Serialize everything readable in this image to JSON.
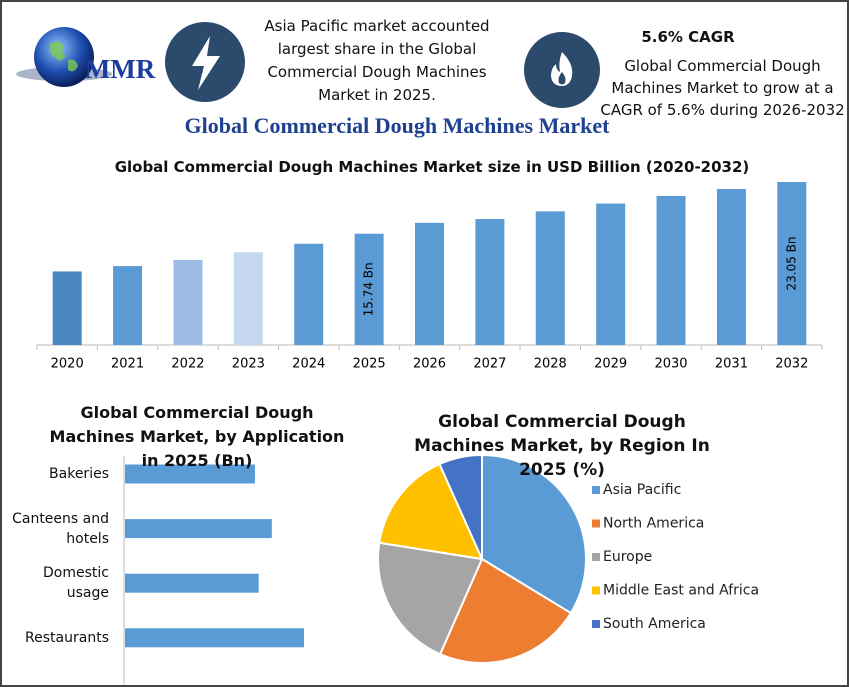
{
  "header": {
    "logo": "MMR",
    "highlight_1": "Asia Pacific market accounted largest share in the Global Commercial Dough Machines Market in 2025.",
    "highlight_2_title": "5.6% CAGR",
    "highlight_2": "Global Commercial Dough Machines Market to grow at a CAGR of 5.6% during 2026-2032",
    "title": "Global Commercial Dough Machines Market"
  },
  "chart_data": [
    {
      "type": "bar",
      "title": "Global Commercial Dough Machines Market size in USD Billion (2020-2032)",
      "categories": [
        "2020",
        "2021",
        "2022",
        "2023",
        "2024",
        "2025",
        "2026",
        "2027",
        "2028",
        "2029",
        "2030",
        "2031",
        "2032"
      ],
      "values": [
        10.4,
        11.16,
        12.03,
        13.12,
        14.32,
        15.74,
        17.27,
        17.81,
        18.9,
        20.0,
        21.08,
        22.06,
        23.05
      ],
      "value_labels": [
        null,
        null,
        null,
        null,
        null,
        "15.74 Bn",
        null,
        null,
        null,
        null,
        null,
        null,
        "23.05 Bn"
      ],
      "colors": [
        "#4a86c0",
        "#5b9bd5",
        "#9dbde6",
        "#c5d7ee",
        "#5b9bd5",
        "#5b9bd5",
        "#5b9bd5",
        "#5b9bd5",
        "#5b9bd5",
        "#5b9bd5",
        "#5b9bd5",
        "#5b9bd5",
        "#5b9bd5"
      ]
    },
    {
      "type": "hbar",
      "title": "Global Commercial Dough Machines Market, by Application in 2025 (Bn)",
      "categories": [
        "Bakeries",
        "Canteens and hotels",
        "Domestic usage",
        "Restaurants"
      ],
      "values": [
        3.47,
        3.92,
        3.57,
        4.78
      ],
      "color": "#5b9bd5"
    },
    {
      "type": "pie",
      "title": "Global Commercial Dough Machines Market, by Region In 2025 (%)",
      "categories": [
        "Asia Pacific",
        "North America",
        "Europe",
        "Middle East and Africa",
        "South America"
      ],
      "values": [
        33.7,
        22.9,
        20.9,
        15.8,
        6.7
      ],
      "colors": [
        "#5b9bd5",
        "#ed7d31",
        "#a5a5a5",
        "#ffc000",
        "#4472c4"
      ],
      "legend": "right"
    }
  ]
}
